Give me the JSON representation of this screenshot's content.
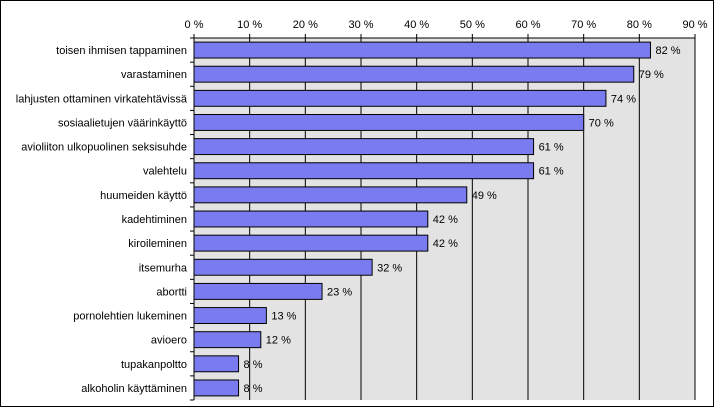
{
  "chart_data": {
    "type": "bar",
    "orientation": "horizontal",
    "categories": [
      "toisen ihmisen tappaminen",
      "varastaminen",
      "lahjusten ottaminen virkatehtävissä",
      "sosiaalietujen väärinkäyttö",
      "avioliiton ulkopuolinen seksisuhde",
      "valehtelu",
      "huumeiden käyttö",
      "kadehtiminen",
      "kiroileminen",
      "itsemurha",
      "abortti",
      "pornolehtien lukeminen",
      "avioero",
      "tupakanpoltto",
      "alkoholin käyttäminen"
    ],
    "values": [
      82,
      79,
      74,
      70,
      61,
      61,
      49,
      42,
      42,
      32,
      23,
      13,
      12,
      8,
      8
    ],
    "data_labels": [
      "82 %",
      "79 %",
      "74 %",
      "70 %",
      "61 %",
      "61 %",
      "49 %",
      "42 %",
      "42 %",
      "32 %",
      "23 %",
      "13 %",
      "12 %",
      "8 %",
      "8 %"
    ],
    "xticks": [
      "0 %",
      "10 %",
      "20 %",
      "30 %",
      "40 %",
      "50 %",
      "60 %",
      "70 %",
      "80 %",
      "90 %"
    ],
    "xlim": [
      0,
      90
    ],
    "xaxis_position": "top",
    "grid": true,
    "legend": "none",
    "colors": {
      "bar_fill": "#7b7bf0",
      "bar_stroke": "#000000",
      "plot_background": "#e3e3e3",
      "gridline": "#000000"
    }
  }
}
